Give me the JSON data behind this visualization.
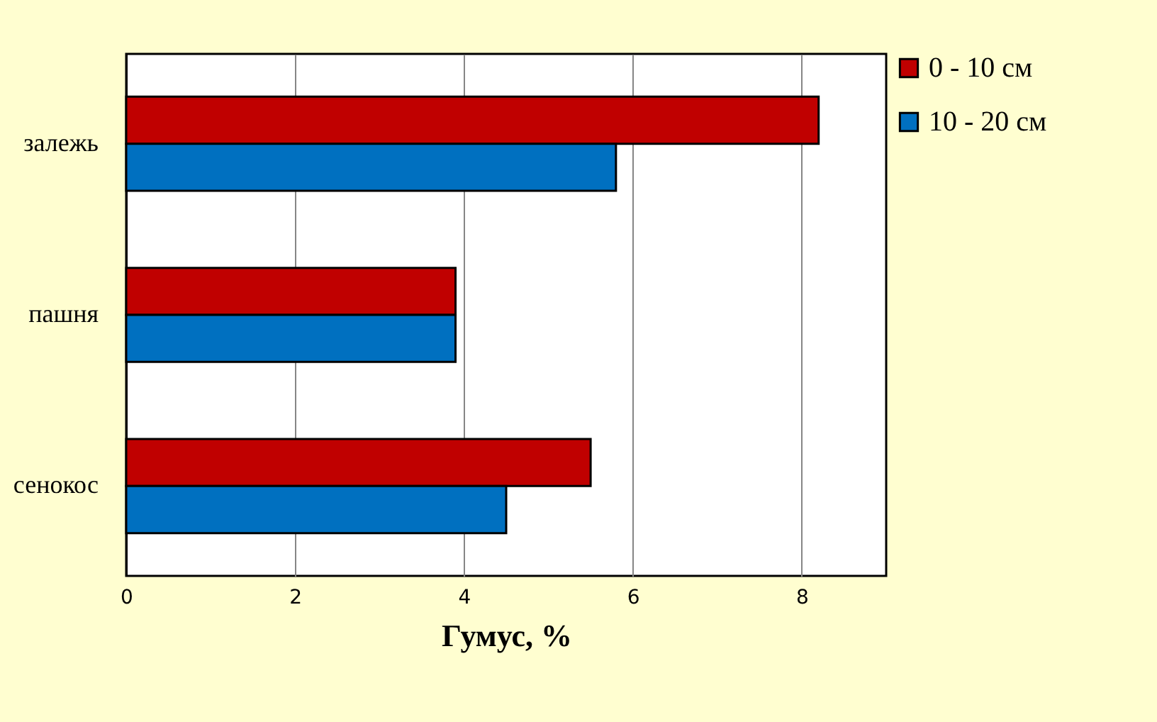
{
  "chart_data": {
    "type": "bar",
    "orientation": "horizontal",
    "xlabel": "Гумус, %",
    "categories": [
      "залежь",
      "пашня",
      "сенокос"
    ],
    "series": [
      {
        "name": "0 - 10 см",
        "color": "#c00000",
        "values": [
          8.2,
          3.9,
          5.5
        ]
      },
      {
        "name": "10 - 20 см",
        "color": "#0070c0",
        "values": [
          5.8,
          3.9,
          4.5
        ]
      }
    ],
    "xlim": [
      0,
      9
    ],
    "xticks": [
      0,
      2,
      4,
      6,
      8
    ],
    "grid": "x",
    "legend": "right"
  }
}
